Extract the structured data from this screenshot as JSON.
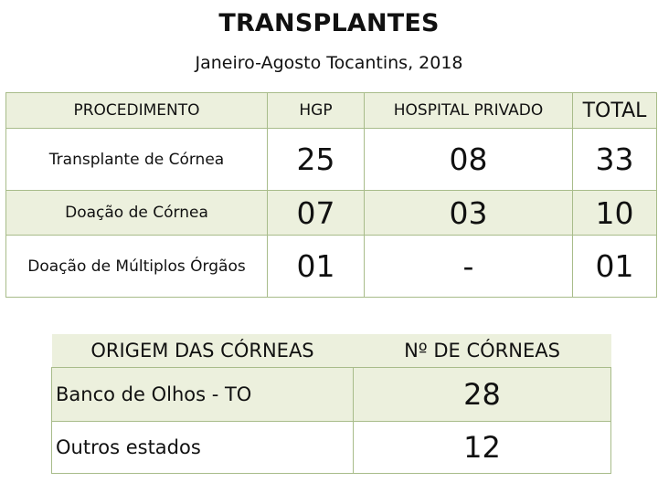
{
  "title": "TRANSPLANTES",
  "subtitle": "Janeiro-Agosto Tocantins, 2018",
  "transplants_table": {
    "headers": [
      "PROCEDIMENTO",
      "HGP",
      "HOSPITAL PRIVADO",
      "TOTAL"
    ],
    "rows": [
      {
        "procedure": "Transplante de Córnea",
        "hgp": "25",
        "private": "08",
        "total": "33"
      },
      {
        "procedure": "Doação de Córnea",
        "hgp": "07",
        "private": "03",
        "total": "10"
      },
      {
        "procedure": "Doação de Múltiplos Órgãos",
        "hgp": "01",
        "private": "-",
        "total": "01"
      }
    ]
  },
  "corneas_table": {
    "headers": [
      "ORIGEM DAS CÓRNEAS",
      "Nº DE CÓRNEAS"
    ],
    "rows": [
      {
        "origin": "Banco de Olhos - TO",
        "count": "28"
      },
      {
        "origin": "Outros estados",
        "count": "12"
      }
    ]
  },
  "colors": {
    "cell_fill": "#ecf0dd",
    "border": "#a8bc8a"
  }
}
